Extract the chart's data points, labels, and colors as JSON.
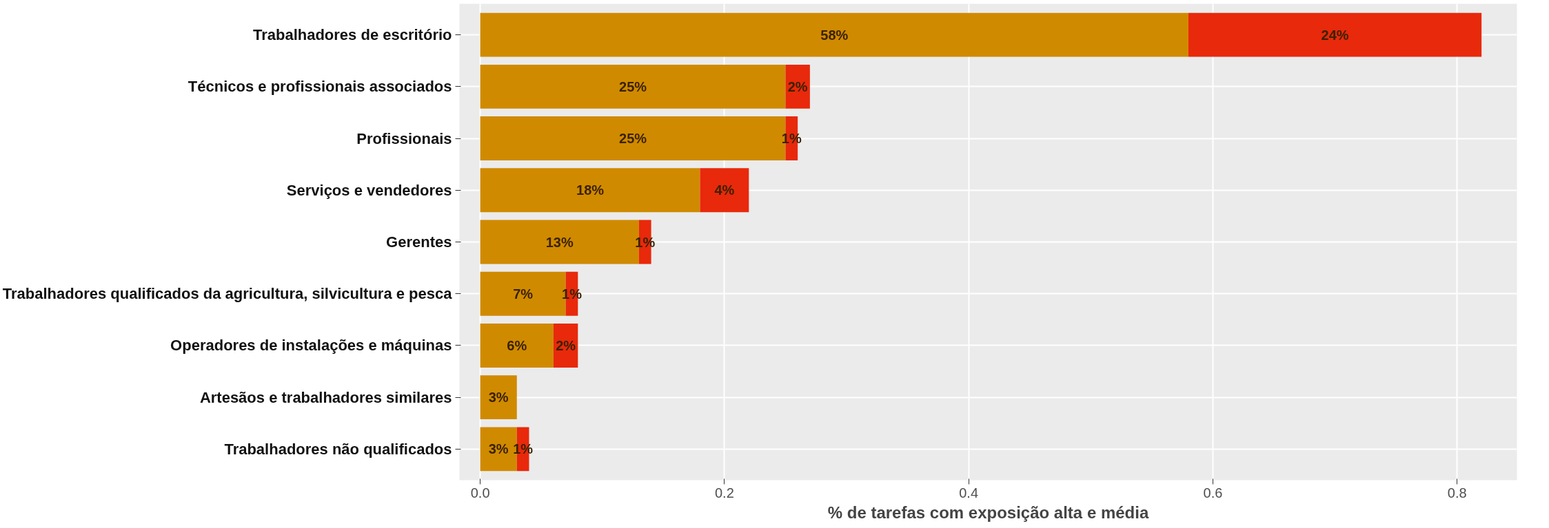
{
  "chart_data": {
    "type": "bar",
    "orientation": "horizontal",
    "stacked": true,
    "xlabel": "% de tarefas com exposição alta e média",
    "categories": [
      "Trabalhadores de escritório",
      "Técnicos e profissionais associados",
      "Profissionais",
      "Serviços e vendedores",
      "Gerentes",
      "Trabalhadores qualificados da agricultura, silvicultura e pesca",
      "Operadores de instalações e máquinas",
      "Artesãos e trabalhadores similares",
      "Trabalhadores não qualificados"
    ],
    "series": [
      {
        "color": "#d08a00",
        "values": [
          0.58,
          0.25,
          0.25,
          0.18,
          0.13,
          0.07,
          0.06,
          0.03,
          0.03
        ],
        "value_labels": [
          "58%",
          "25%",
          "25%",
          "18%",
          "13%",
          "7%",
          "6%",
          "3%",
          "3%"
        ]
      },
      {
        "color": "#e8290b",
        "values": [
          0.24,
          0.02,
          0.01,
          0.04,
          0.01,
          0.01,
          0.02,
          null,
          0.01
        ],
        "value_labels": [
          "24%",
          "2%",
          "1%",
          "4%",
          "1%",
          "1%",
          "2%",
          null,
          "1%"
        ]
      }
    ],
    "xlim": [
      -0.017,
      0.849
    ],
    "xticks": [
      {
        "value": 0,
        "label": "0.0"
      },
      0.2,
      0.4,
      0.6,
      0.8
    ],
    "grid": true
  }
}
